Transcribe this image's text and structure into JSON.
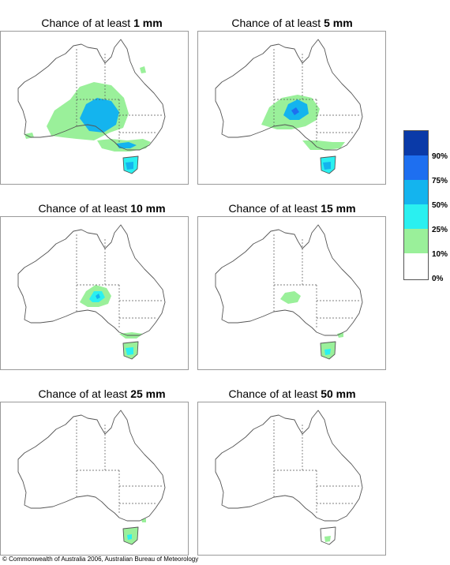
{
  "panels": [
    {
      "title_prefix": "Chance of at least ",
      "threshold": "1 mm",
      "level": "1mm"
    },
    {
      "title_prefix": "Chance of at least ",
      "threshold": "5 mm",
      "level": "5mm"
    },
    {
      "title_prefix": "Chance of at least ",
      "threshold": "10 mm",
      "level": "10mm"
    },
    {
      "title_prefix": "Chance of at least ",
      "threshold": "15 mm",
      "level": "15mm"
    },
    {
      "title_prefix": "Chance of at least ",
      "threshold": "25 mm",
      "level": "25mm"
    },
    {
      "title_prefix": "Chance of at least ",
      "threshold": "50 mm",
      "level": "50mm"
    }
  ],
  "legend": {
    "labels": [
      "90%",
      "75%",
      "50%",
      "25%",
      "10%",
      "0%"
    ],
    "colors": [
      "#0a3aa8",
      "#1e6ff0",
      "#14b4ee",
      "#2af0f0",
      "#9af09a",
      "#ffffff"
    ]
  },
  "copyright": "© Commonwealth of Australia 2006, Australian Bureau of Meteorology"
}
